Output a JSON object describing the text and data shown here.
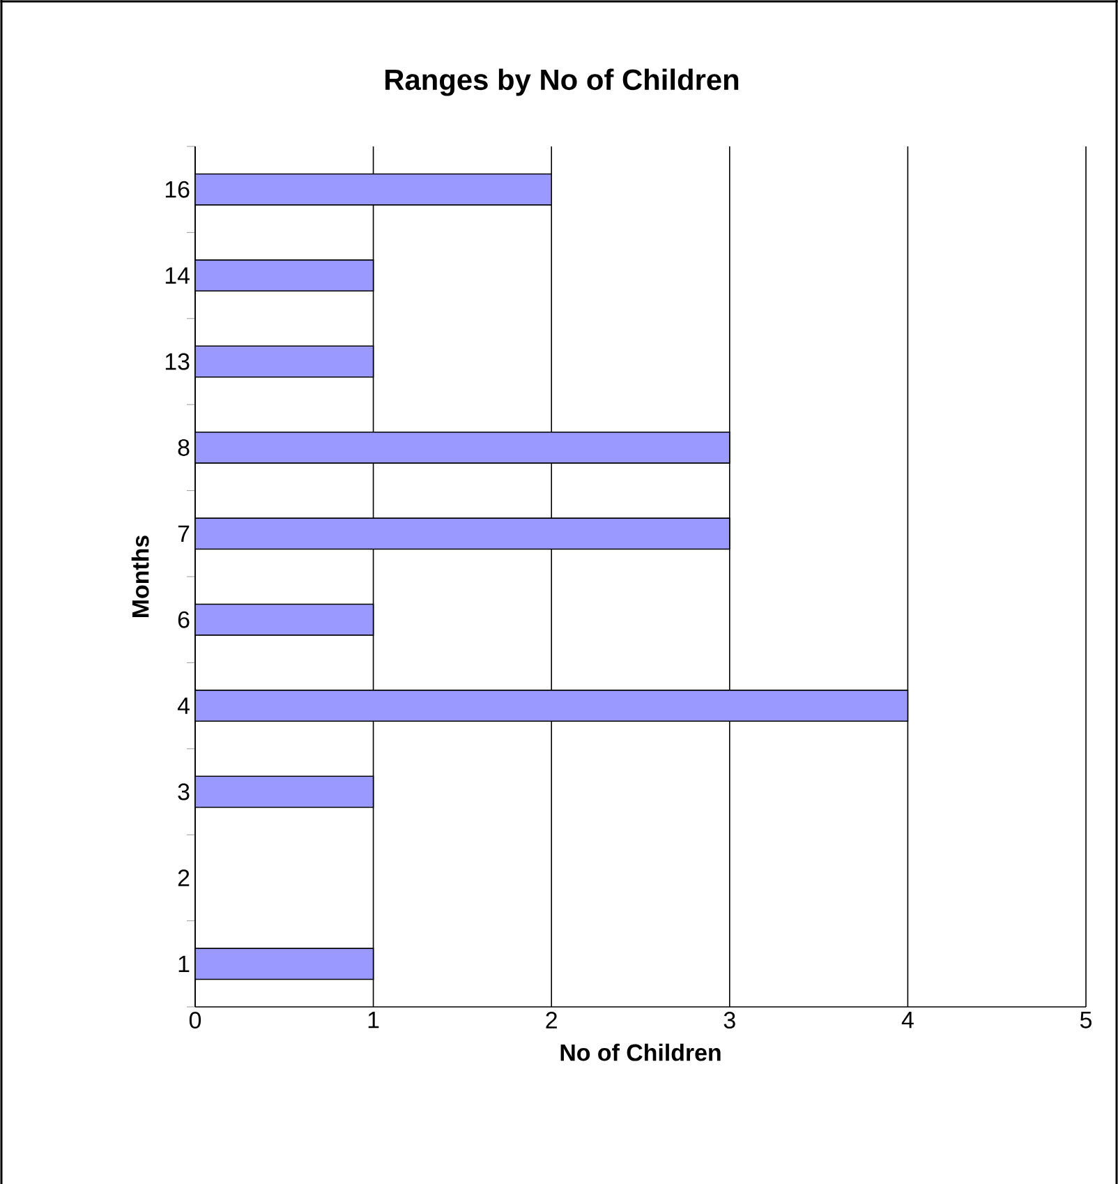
{
  "chart_data": {
    "type": "bar",
    "orientation": "horizontal",
    "title": "Ranges by No of Children",
    "xlabel": "No of Children",
    "ylabel": "Months",
    "categories": [
      "16",
      "14",
      "13",
      "8",
      "7",
      "6",
      "4",
      "3",
      "2",
      "1"
    ],
    "values": [
      2,
      1,
      1,
      3,
      3,
      1,
      4,
      1,
      null,
      1
    ],
    "color": "#9999ff",
    "xlim": [
      0,
      5
    ],
    "xticks": [
      0,
      1,
      2,
      3,
      4,
      5
    ],
    "grid": "x"
  }
}
